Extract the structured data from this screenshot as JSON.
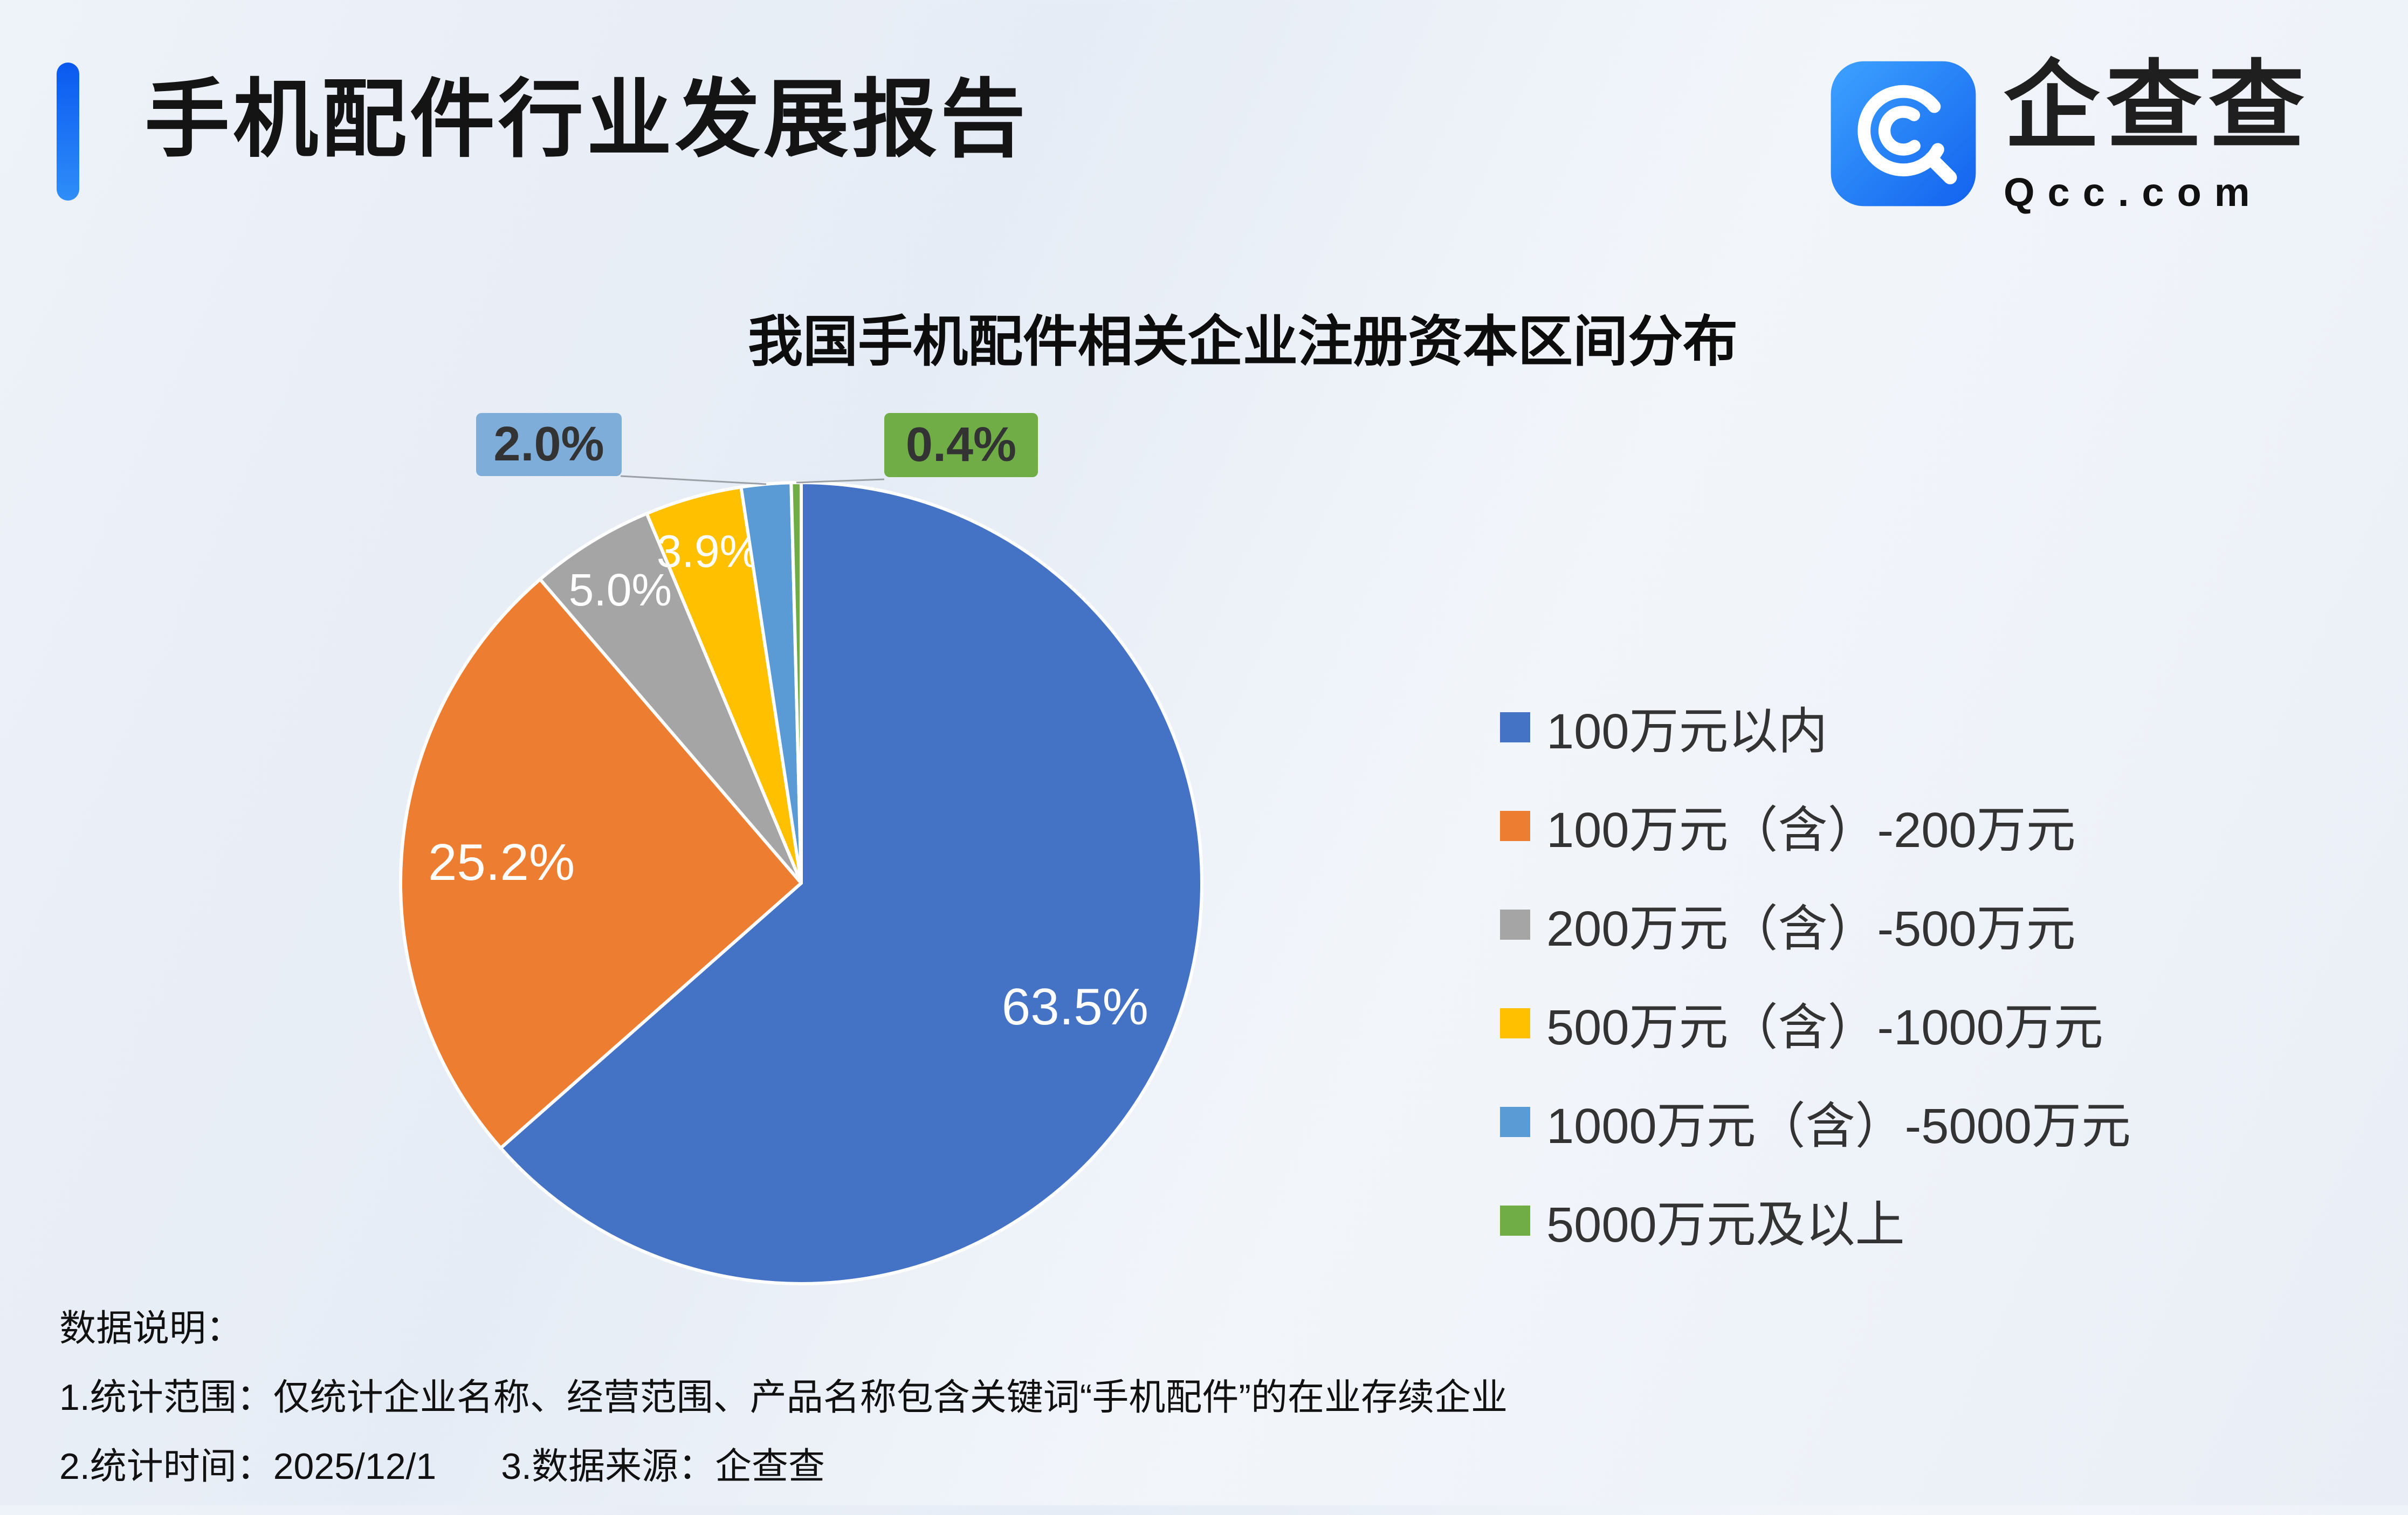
{
  "header": {
    "report_title": "手机配件行业发展报告",
    "logo": {
      "brand_name": "企查查",
      "brand_domain": "Qcc.com"
    }
  },
  "chart_data": {
    "type": "pie",
    "title": "我国手机配件相关企业注册资本区间分布",
    "value_unit": "percent",
    "legend_position": "right",
    "slices": [
      {
        "label": "100万元以内",
        "value": 63.5,
        "display": "63.5%",
        "color": "#4472C4"
      },
      {
        "label": "100万元（含）-200万元",
        "value": 25.2,
        "display": "25.2%",
        "color": "#ED7D31"
      },
      {
        "label": "200万元（含）-500万元",
        "value": 5.0,
        "display": "5.0%",
        "color": "#A5A5A5"
      },
      {
        "label": "500万元（含）-1000万元",
        "value": 3.9,
        "display": "3.9%",
        "color": "#FFC000"
      },
      {
        "label": "1000万元（含）-5000万元",
        "value": 2.0,
        "display": "2.0%",
        "color": "#5B9BD5"
      },
      {
        "label": "5000万元及以上",
        "value": 0.4,
        "display": "0.4%",
        "color": "#70AD47"
      }
    ]
  },
  "footnotes": {
    "heading": "数据说明：",
    "scope": "1.统计范围：仅统计企业名称、经营范围、产品名称包含关键词“手机配件”的在业存续企业",
    "date": "2.统计时间：2025/12/1",
    "source": "3.数据来源：企查查"
  }
}
